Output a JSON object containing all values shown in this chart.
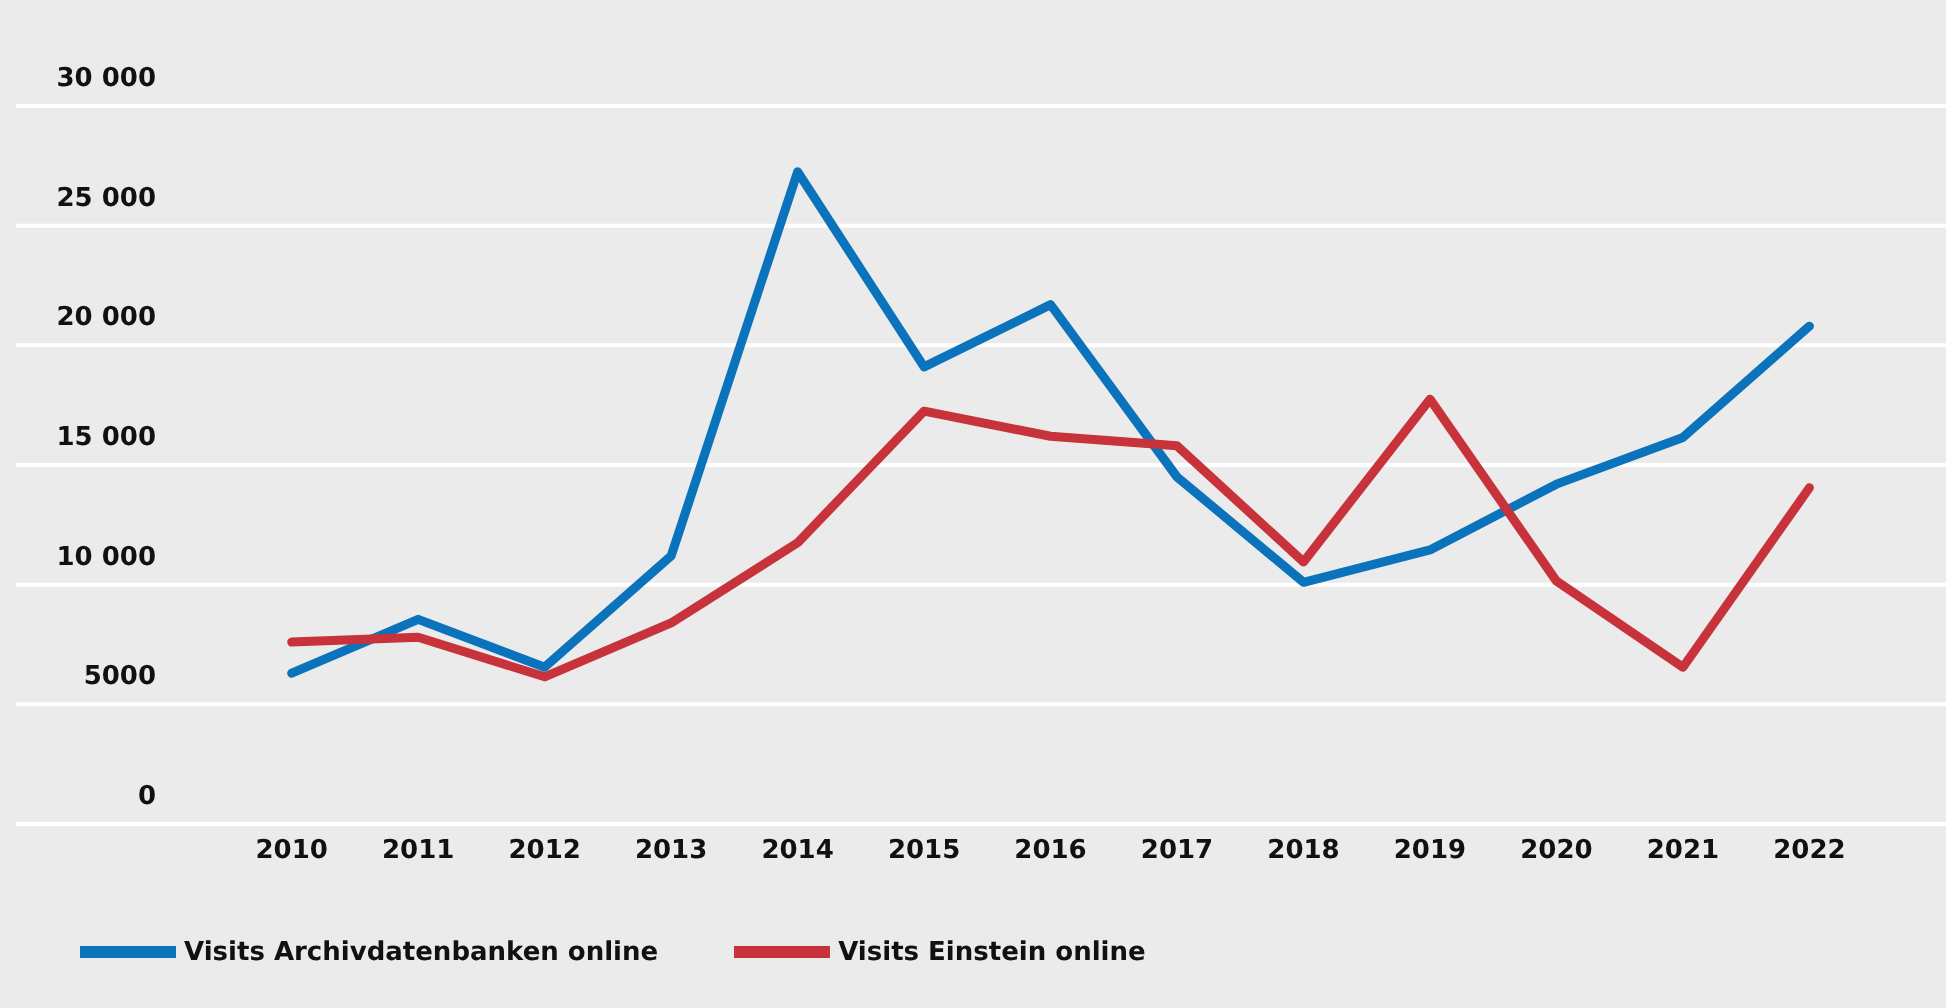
{
  "chart_data": {
    "type": "line",
    "categories": [
      "2010",
      "2011",
      "2012",
      "2013",
      "2014",
      "2015",
      "2016",
      "2017",
      "2018",
      "2019",
      "2020",
      "2021",
      "2022"
    ],
    "series": [
      {
        "name": "Visits Archivdatenbanken online",
        "color": "#0a73bb",
        "values": [
          6300,
          8550,
          6550,
          11200,
          27250,
          19100,
          21700,
          14500,
          10100,
          11450,
          14200,
          16150,
          20800
        ]
      },
      {
        "name": "Visits Einstein online",
        "color": "#c8323a",
        "values": [
          7600,
          7800,
          6150,
          8400,
          11750,
          17250,
          16200,
          15800,
          10950,
          17750,
          10150,
          6550,
          14050
        ]
      }
    ],
    "ylim": [
      0,
      30000
    ],
    "yticks": [
      0,
      5000,
      {
        "value": 10000,
        "label": "10 000"
      },
      {
        "value": 15000,
        "label": "15 000"
      },
      {
        "value": 20000,
        "label": "20 000"
      },
      {
        "value": 25000,
        "label": "25 000"
      },
      {
        "value": 30000,
        "label": "30 000"
      }
    ],
    "grid": "y",
    "legend": "bottom left",
    "marker": "none",
    "line_style": "solid"
  }
}
